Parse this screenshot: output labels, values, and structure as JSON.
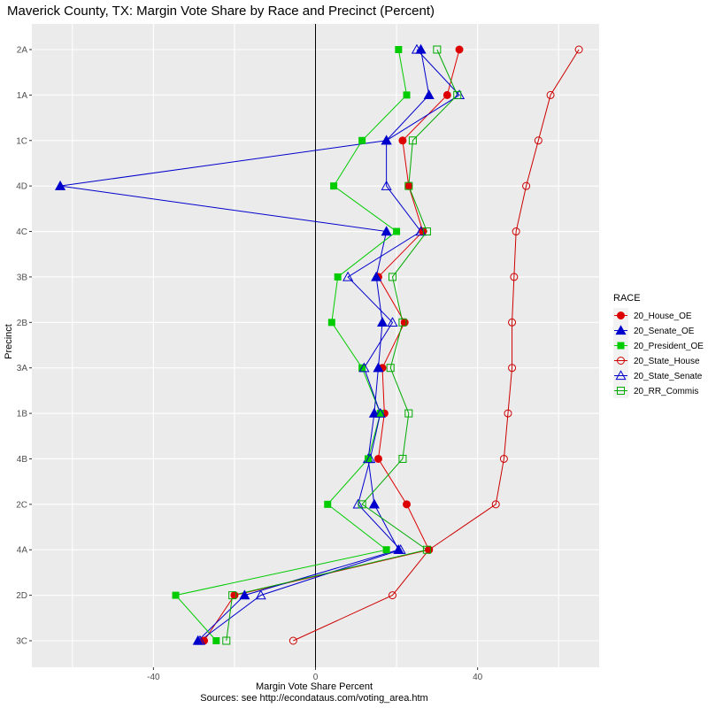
{
  "chart_data": {
    "type": "line",
    "title": "Maverick County, TX: Margin Vote Share by Race and Precinct (Percent)",
    "xlabel": "Margin Vote Share Percent",
    "ylabel": "Precinct",
    "caption": "Sources: see http://econdataus.com/voting_area.htm",
    "xlim": [
      -70,
      70
    ],
    "xticks": [
      -40,
      0,
      40
    ],
    "xtick_labels": [
      "-40",
      "0",
      "40"
    ],
    "categories": [
      "2A",
      "1A",
      "1C",
      "4D",
      "4C",
      "3B",
      "2B",
      "3A",
      "1B",
      "4B",
      "2C",
      "4A",
      "2D",
      "3C"
    ],
    "legend": {
      "title": "RACE",
      "position": "right"
    },
    "grid": true,
    "series": [
      {
        "name": "20_House_OE",
        "color": "#dd0000",
        "marker": "circle-filled",
        "values": [
          35.5,
          32.5,
          21.5,
          23,
          26.5,
          15.5,
          22,
          16.5,
          17,
          15.5,
          22.5,
          28,
          -20,
          -27.5
        ]
      },
      {
        "name": "20_Senate_OE",
        "color": "#0000cc",
        "marker": "triangle-filled",
        "values": [
          26,
          28,
          17.5,
          -63,
          17.5,
          15,
          16.5,
          15.5,
          14.5,
          13,
          14.5,
          20.5,
          -17.5,
          -29
        ]
      },
      {
        "name": "20_President_OE",
        "color": "#00cc00",
        "marker": "square-filled",
        "values": [
          20.5,
          22.5,
          11.5,
          4.5,
          20,
          5.5,
          4,
          11.5,
          16,
          13,
          3,
          17.5,
          -34.5,
          -24.5
        ]
      },
      {
        "name": "20_State_House",
        "color": "#cc0000",
        "marker": "circle-open",
        "values": [
          65,
          58,
          55,
          52,
          49.5,
          49,
          48.5,
          48.5,
          47.5,
          46.5,
          44.5,
          28,
          19,
          -5.5
        ]
      },
      {
        "name": "20_State_Senate",
        "color": "#0000cc",
        "marker": "triangle-open",
        "values": [
          25,
          35.5,
          17.5,
          17.5,
          26,
          8,
          19,
          12,
          16,
          13.5,
          10.5,
          21,
          -13.5,
          -28.5
        ]
      },
      {
        "name": "20_RR_Commis",
        "color": "#00aa00",
        "marker": "square-open",
        "values": [
          30,
          35,
          24,
          23,
          27.5,
          19,
          21.5,
          18.5,
          23,
          21.5,
          11.5,
          27.5,
          -20.5,
          -22
        ]
      }
    ]
  }
}
